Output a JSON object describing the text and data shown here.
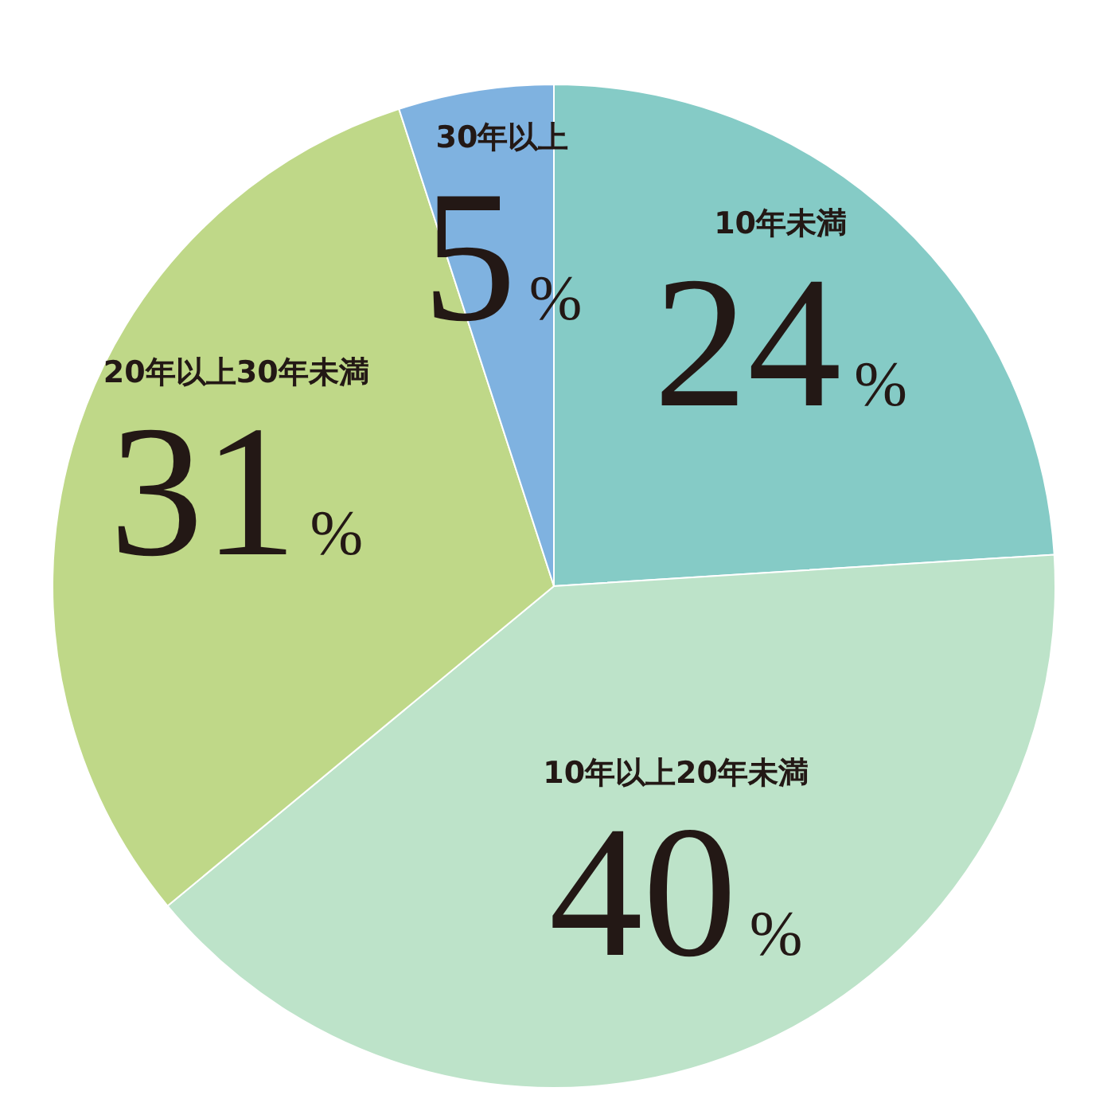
{
  "chart_data": {
    "type": "pie",
    "categories": [
      "10年未満",
      "10年以上20年未満",
      "20年以上30年未満",
      "30年以上"
    ],
    "values": [
      24,
      40,
      31,
      5
    ],
    "colors": [
      "#85cbc6",
      "#bde3c9",
      "#bfd888",
      "#7fb2e0"
    ],
    "value_labels": [
      "24%",
      "40%",
      "31%",
      "5%"
    ]
  }
}
